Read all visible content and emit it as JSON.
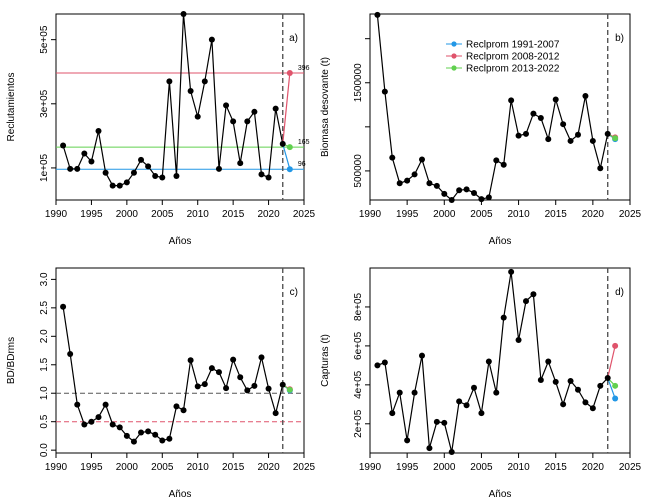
{
  "chart_data": [
    {
      "panel": "a)",
      "type": "line",
      "xlabel": "Años",
      "ylabel": "Reclutamientos",
      "xlim": [
        1990,
        2025
      ],
      "ylim": [
        0,
        580000
      ],
      "xticks": [
        1990,
        1995,
        2000,
        2005,
        2010,
        2015,
        2020,
        2025
      ],
      "yticks": [
        100000,
        300000,
        500000
      ],
      "ytick_labels": [
        "1e+05",
        "3e+05",
        "5e+05"
      ],
      "x": [
        1991,
        1992,
        1993,
        1994,
        1995,
        1996,
        1997,
        1998,
        1999,
        2000,
        2001,
        2002,
        2003,
        2004,
        2005,
        2006,
        2007,
        2008,
        2009,
        2010,
        2011,
        2012,
        2013,
        2014,
        2015,
        2016,
        2017,
        2018,
        2019,
        2020,
        2021,
        2022
      ],
      "y": [
        170000,
        97000,
        97000,
        145000,
        120000,
        215000,
        85000,
        45000,
        45000,
        55000,
        85000,
        125000,
        105000,
        75000,
        70000,
        370000,
        75000,
        580000,
        340000,
        260000,
        370000,
        500000,
        97000,
        295000,
        245000,
        115000,
        245000,
        275000,
        80000,
        70000,
        285000,
        175000
      ],
      "vline": 2022,
      "hlines": [
        {
          "y": 396000,
          "color": "#df536b",
          "label": "396"
        },
        {
          "y": 165000,
          "color": "#61d04f",
          "label": "165"
        },
        {
          "y": 96000,
          "color": "#2297e6",
          "label": "96"
        }
      ],
      "projections": [
        {
          "name": "Reclprom 1991-2007",
          "color": "#2297e6",
          "y": 96000
        },
        {
          "name": "Reclprom 2008-2012",
          "color": "#df536b",
          "y": 396000
        },
        {
          "name": "Reclprom 2013-2022",
          "color": "#61d04f",
          "y": 165000
        }
      ],
      "proj_x": 2023
    },
    {
      "panel": "b)",
      "type": "line",
      "xlabel": "Años",
      "ylabel": "Biomasa desovante (t)",
      "xlim": [
        1990,
        2025
      ],
      "ylim": [
        170000,
        2280000
      ],
      "xticks": [
        1990,
        1995,
        2000,
        2005,
        2010,
        2015,
        2020,
        2025
      ],
      "yticks": [
        500000,
        1000000,
        1500000,
        2000000
      ],
      "ytick_labels": [
        "500000",
        "",
        "1500000",
        ""
      ],
      "x": [
        1991,
        1992,
        1993,
        1994,
        1995,
        1996,
        1997,
        1998,
        1999,
        2000,
        2001,
        2002,
        2003,
        2004,
        2005,
        2006,
        2007,
        2008,
        2009,
        2010,
        2011,
        2012,
        2013,
        2014,
        2015,
        2016,
        2017,
        2018,
        2019,
        2020,
        2021,
        2022
      ],
      "y": [
        2270000,
        1400000,
        650000,
        360000,
        390000,
        460000,
        630000,
        360000,
        330000,
        240000,
        170000,
        280000,
        290000,
        250000,
        180000,
        200000,
        620000,
        570000,
        1300000,
        900000,
        920000,
        1150000,
        1100000,
        860000,
        1310000,
        1030000,
        840000,
        910000,
        1350000,
        840000,
        530000,
        920000
      ],
      "vline": 2022,
      "projections": [
        {
          "name": "Reclprom 1991-2007",
          "color": "#2297e6",
          "y": 860000
        },
        {
          "name": "Reclprom 2008-2012",
          "color": "#df536b",
          "y": 880000
        },
        {
          "name": "Reclprom 2013-2022",
          "color": "#61d04f",
          "y": 870000
        }
      ],
      "proj_x": 2023,
      "legend": {
        "position": "top-right",
        "entries": [
          {
            "label": "Reclprom 1991-2007",
            "color": "#2297e6"
          },
          {
            "label": "Reclprom 2008-2012",
            "color": "#df536b"
          },
          {
            "label": "Reclprom 2013-2022",
            "color": "#61d04f"
          }
        ]
      }
    },
    {
      "panel": "c)",
      "type": "line",
      "xlabel": "Años",
      "ylabel": "BD/BDrms",
      "xlim": [
        1990,
        2025
      ],
      "ylim": [
        -0.05,
        3.2
      ],
      "xticks": [
        1990,
        1995,
        2000,
        2005,
        2010,
        2015,
        2020,
        2025
      ],
      "yticks": [
        0.0,
        0.5,
        1.0,
        1.5,
        2.0,
        2.5,
        3.0
      ],
      "ytick_labels": [
        "0.0",
        "0.5",
        "1.0",
        "1.5",
        "2.0",
        "2.5",
        "3.0"
      ],
      "x": [
        1991,
        1992,
        1993,
        1994,
        1995,
        1996,
        1997,
        1998,
        1999,
        2000,
        2001,
        2002,
        2003,
        2004,
        2005,
        2006,
        2007,
        2008,
        2009,
        2010,
        2011,
        2012,
        2013,
        2014,
        2015,
        2016,
        2017,
        2018,
        2019,
        2020,
        2021,
        2022
      ],
      "y": [
        2.52,
        1.69,
        0.8,
        0.45,
        0.5,
        0.58,
        0.8,
        0.45,
        0.4,
        0.25,
        0.15,
        0.31,
        0.33,
        0.27,
        0.17,
        0.2,
        0.77,
        0.7,
        1.58,
        1.12,
        1.16,
        1.44,
        1.37,
        1.09,
        1.59,
        1.28,
        1.05,
        1.13,
        1.63,
        1.08,
        0.65,
        1.15
      ],
      "vline": 2022,
      "hlines": [
        {
          "y": 1.0,
          "color": "#555555",
          "style": "dashed"
        },
        {
          "y": 0.5,
          "color": "#df536b",
          "style": "dashed"
        }
      ],
      "projections": [
        {
          "name": "Reclprom 1991-2007",
          "color": "#2297e6",
          "y": 1.05
        },
        {
          "name": "Reclprom 2008-2012",
          "color": "#df536b",
          "y": 1.07
        },
        {
          "name": "Reclprom 2013-2022",
          "color": "#61d04f",
          "y": 1.06
        }
      ],
      "proj_x": 2023
    },
    {
      "panel": "d)",
      "type": "line",
      "xlabel": "Años",
      "ylabel": "Capturas (t)",
      "xlim": [
        1990,
        2025
      ],
      "ylim": [
        50000,
        1000000
      ],
      "xticks": [
        1990,
        1995,
        2000,
        2005,
        2010,
        2015,
        2020,
        2025
      ],
      "yticks": [
        200000,
        400000,
        600000,
        800000
      ],
      "ytick_labels": [
        "2e+05",
        "4e+05",
        "6e+05",
        "8e+05"
      ],
      "x": [
        1991,
        1992,
        1993,
        1994,
        1995,
        1996,
        1997,
        1998,
        1999,
        2000,
        2001,
        2002,
        2003,
        2004,
        2005,
        2006,
        2007,
        2008,
        2009,
        2010,
        2011,
        2012,
        2013,
        2014,
        2015,
        2016,
        2017,
        2018,
        2019,
        2020,
        2021,
        2022
      ],
      "y": [
        500000,
        515000,
        255000,
        360000,
        115000,
        360000,
        550000,
        75000,
        210000,
        205000,
        55000,
        315000,
        295000,
        385000,
        255000,
        520000,
        360000,
        745000,
        980000,
        630000,
        830000,
        865000,
        425000,
        520000,
        415000,
        300000,
        420000,
        375000,
        310000,
        280000,
        395000,
        435000
      ],
      "vline": 2022,
      "projections": [
        {
          "name": "Reclprom 1991-2007",
          "color": "#2297e6",
          "y": 330000
        },
        {
          "name": "Reclprom 2008-2012",
          "color": "#df536b",
          "y": 600000
        },
        {
          "name": "Reclprom 2013-2022",
          "color": "#61d04f",
          "y": 395000
        }
      ],
      "proj_x": 2023
    }
  ]
}
